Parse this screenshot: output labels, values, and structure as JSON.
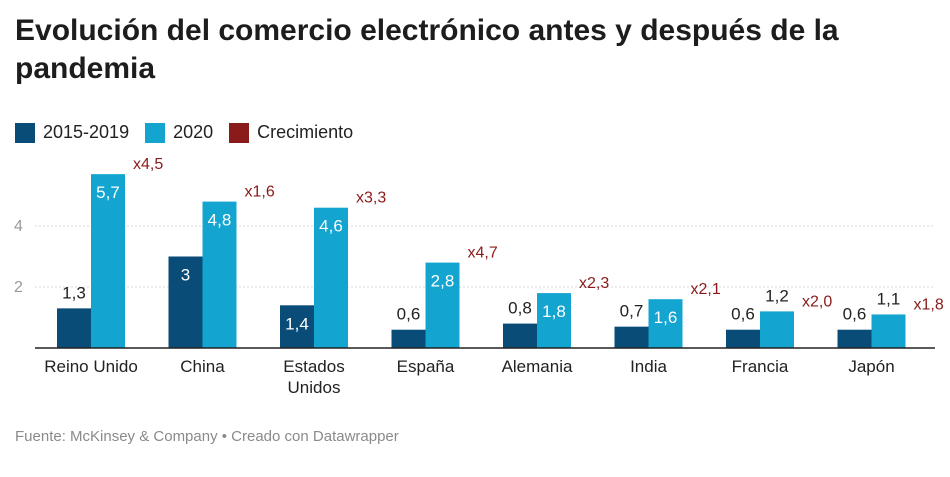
{
  "title": "Evolución del comercio electrónico antes y después de la pandemia",
  "legend": [
    {
      "label": "2015-2019",
      "color": "#0a4c78"
    },
    {
      "label": "2020",
      "color": "#13a4d0"
    },
    {
      "label": "Crecimiento",
      "color": "#8b1a1a"
    }
  ],
  "footer": "Fuente: McKinsey & Company • Creado con Datawrapper",
  "chart_data": {
    "type": "bar",
    "categories": [
      "Reino Unido",
      "China",
      "Estados Unidos",
      "España",
      "Alemania",
      "India",
      "Francia",
      "Japón"
    ],
    "category_lines": [
      [
        "Reino Unido"
      ],
      [
        "China"
      ],
      [
        "Estados",
        "Unidos"
      ],
      [
        "España"
      ],
      [
        "Alemania"
      ],
      [
        "India"
      ],
      [
        "Francia"
      ],
      [
        "Japón"
      ]
    ],
    "series": [
      {
        "name": "2015-2019",
        "values": [
          1.3,
          3,
          1.4,
          0.6,
          0.8,
          0.7,
          0.6,
          0.6
        ],
        "labels": [
          "1,3",
          "3",
          "1,4",
          "0,6",
          "0,8",
          "0,7",
          "0,6",
          "0,6"
        ]
      },
      {
        "name": "2020",
        "values": [
          5.7,
          4.8,
          4.6,
          2.8,
          1.8,
          1.6,
          1.2,
          1.1
        ],
        "labels": [
          "5,7",
          "4,8",
          "4,6",
          "2,8",
          "1,8",
          "1,6",
          "1,2",
          "1,1"
        ]
      }
    ],
    "growth": {
      "name": "Crecimiento",
      "labels": [
        "x4,5",
        "x1,6",
        "x3,3",
        "x4,7",
        "x2,3",
        "x2,1",
        "x2,0",
        "x1,8"
      ]
    },
    "y_ticks": [
      2,
      4
    ],
    "ylim": [
      0,
      6
    ],
    "grid": true,
    "legend_position": "top-left",
    "colors": {
      "s1": "#0a4c78",
      "s2": "#13a4d0",
      "growth": "#8b1a1a",
      "grid": "#d8d8d8",
      "axis": "#222222",
      "tick": "#999999"
    }
  }
}
